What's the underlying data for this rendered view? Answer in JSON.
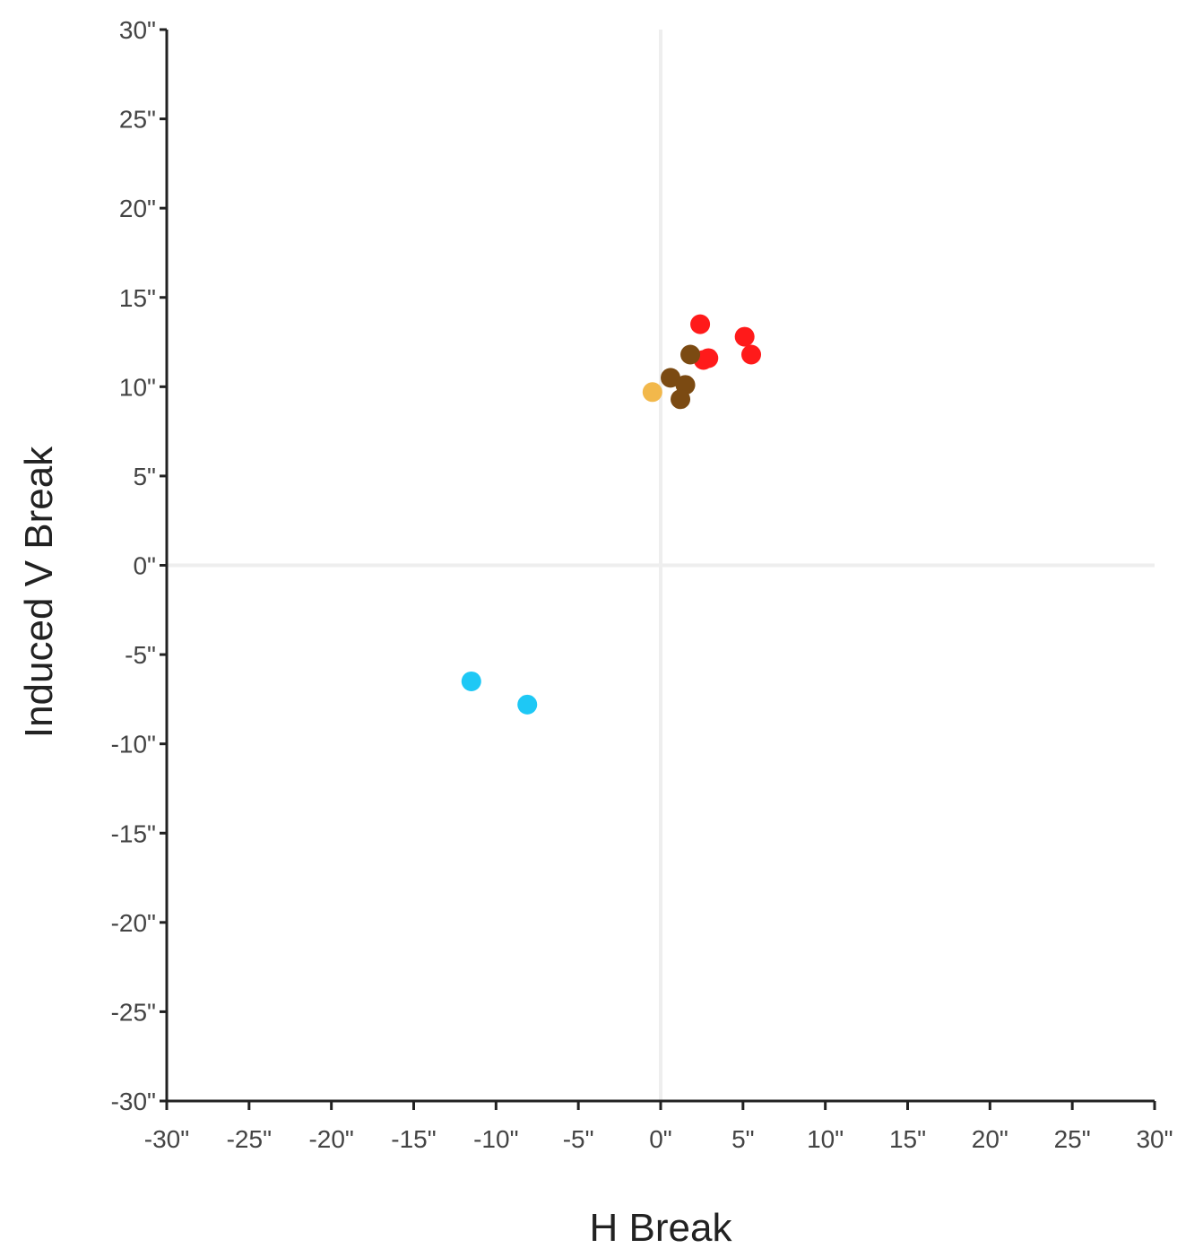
{
  "chart_data": {
    "type": "scatter",
    "title": "",
    "xlabel": "H Break",
    "ylabel": "Induced V Break",
    "xlim": [
      -30,
      30
    ],
    "ylim": [
      -30,
      30
    ],
    "x_ticks": [
      -30,
      -25,
      -20,
      -15,
      -10,
      -5,
      0,
      5,
      10,
      15,
      20,
      25,
      30
    ],
    "y_ticks": [
      30,
      25,
      20,
      15,
      10,
      5,
      0,
      -5,
      -10,
      -15,
      -20,
      -25,
      -30
    ],
    "x_tick_labels": [
      "-30\"",
      "-25\"",
      "-20\"",
      "-15\"",
      "-10\"",
      "-5\"",
      "0\"",
      "5\"",
      "10\"",
      "15\"",
      "20\"",
      "25\"",
      "30\""
    ],
    "y_tick_labels": [
      "30\"",
      "25\"",
      "20\"",
      "15\"",
      "10\"",
      "5\"",
      "0\"",
      "-5\"",
      "-10\"",
      "-15\"",
      "-20\"",
      "-25\"",
      "-30\""
    ],
    "zero_lines": true,
    "grid": false,
    "series": [
      {
        "color": "#ff1a1a",
        "points": [
          {
            "x": 2.4,
            "y": 13.5
          },
          {
            "x": 5.1,
            "y": 12.8
          },
          {
            "x": 5.5,
            "y": 11.8
          },
          {
            "x": 2.6,
            "y": 11.5
          },
          {
            "x": 2.9,
            "y": 11.6
          }
        ]
      },
      {
        "color": "#7b4a12",
        "points": [
          {
            "x": 1.8,
            "y": 11.8
          },
          {
            "x": 0.6,
            "y": 10.5
          },
          {
            "x": 1.5,
            "y": 10.1
          },
          {
            "x": 1.2,
            "y": 9.3
          }
        ]
      },
      {
        "color": "#f2b84b",
        "points": [
          {
            "x": -0.5,
            "y": 9.7
          }
        ]
      },
      {
        "color": "#1ec8f5",
        "points": [
          {
            "x": -11.5,
            "y": -6.5
          },
          {
            "x": -8.1,
            "y": -7.8
          }
        ]
      }
    ]
  }
}
